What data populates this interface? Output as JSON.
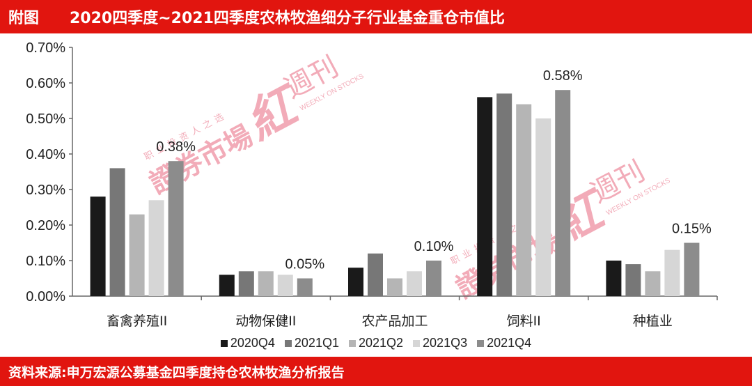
{
  "header": {
    "figure_label": "附图",
    "title": "2020四季度~2021四季度农林牧渔细分子行业基金重仓市值比"
  },
  "footer": {
    "source": "资料来源:申万宏源公募基金四季度持仓农林牧渔分析报告"
  },
  "watermark": {
    "main": "證券市場",
    "brand": "紅週刊",
    "slogan": "职业投资人之选",
    "english": "WEEKLY ON STOCKS"
  },
  "colors": {
    "header_bg": "#e1150f",
    "series": [
      "#1a1a1a",
      "#777777",
      "#b5b5b5",
      "#d6d6d6",
      "#8c8c8c"
    ],
    "watermark": "#e8687f"
  },
  "chart_data": {
    "type": "bar",
    "title": "2020四季度~2021四季度农林牧渔细分子行业基金重仓市值比",
    "xlabel": "",
    "ylabel": "",
    "ylim": [
      0,
      0.7
    ],
    "y_unit": "%",
    "yticks": [
      "0.00%",
      "0.10%",
      "0.20%",
      "0.30%",
      "0.40%",
      "0.50%",
      "0.60%",
      "0.70%"
    ],
    "grid": false,
    "legend_position": "bottom",
    "categories": [
      "畜禽养殖II",
      "动物保健II",
      "农产品加工",
      "饲料II",
      "种植业"
    ],
    "series": [
      {
        "name": "2020Q4",
        "values": [
          0.28,
          0.06,
          0.08,
          0.56,
          0.1
        ]
      },
      {
        "name": "2021Q1",
        "values": [
          0.36,
          0.07,
          0.12,
          0.57,
          0.09
        ]
      },
      {
        "name": "2021Q2",
        "values": [
          0.23,
          0.07,
          0.05,
          0.54,
          0.07
        ]
      },
      {
        "name": "2021Q3",
        "values": [
          0.27,
          0.06,
          0.07,
          0.5,
          0.13
        ]
      },
      {
        "name": "2021Q4",
        "values": [
          0.38,
          0.05,
          0.1,
          0.58,
          0.15
        ]
      }
    ],
    "annotations": [
      "0.38%",
      "0.05%",
      "0.10%",
      "0.58%",
      "0.15%"
    ]
  }
}
